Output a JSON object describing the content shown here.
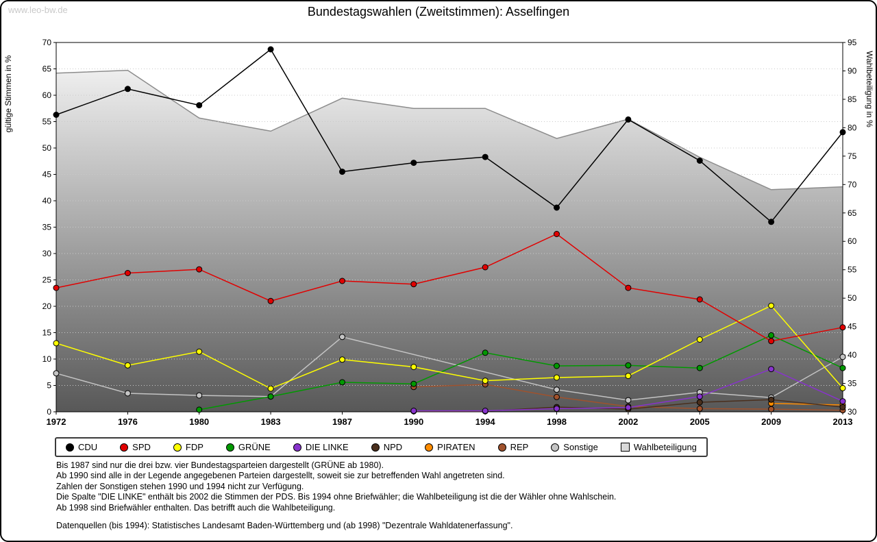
{
  "watermark": "www.leo-bw.de",
  "title": "Bundestagswahlen (Zweitstimmen): Asselfingen",
  "chart_data": {
    "type": "line",
    "x": [
      "1972",
      "1976",
      "1980",
      "1983",
      "1987",
      "1990",
      "1994",
      "1998",
      "2002",
      "2005",
      "2009",
      "2013"
    ],
    "left_axis": {
      "label": "gültige Stimmen in %",
      "min": 0,
      "max": 70,
      "step": 5
    },
    "right_axis": {
      "label": "Wahlbeteiligung in %",
      "min": 30,
      "max": 95,
      "step": 5
    },
    "grid": true,
    "legend_position": "bottom",
    "area_gradient": [
      "#fbfbfb",
      "#585858"
    ],
    "series": [
      {
        "name": "Wahlbeteiligung",
        "axis": "right",
        "type": "area",
        "color": "#8c8c8c",
        "legend_swatch": "#d9d9d9",
        "values": [
          89.6,
          90.1,
          81.7,
          79.4,
          85.2,
          83.4,
          83.4,
          78.1,
          81.5,
          74.8,
          69.1,
          69.6
        ]
      },
      {
        "name": "Sonstige",
        "axis": "left",
        "color": "#c4c4c4",
        "values": [
          7.3,
          3.5,
          3.1,
          2.9,
          14.2,
          null,
          null,
          4.2,
          2.2,
          3.7,
          2.7,
          10.4
        ]
      },
      {
        "name": "REP",
        "axis": "left",
        "color": "#a0522d",
        "values": [
          null,
          null,
          null,
          null,
          null,
          4.7,
          5.2,
          2.8,
          1.0,
          0.6,
          0.5,
          0.3
        ]
      },
      {
        "name": "PIRATEN",
        "axis": "left",
        "color": "#ff8c00",
        "values": [
          null,
          null,
          null,
          null,
          null,
          null,
          null,
          null,
          null,
          null,
          1.6,
          1.3
        ]
      },
      {
        "name": "NPD",
        "axis": "left",
        "color": "#4a2f1d",
        "values": [
          null,
          null,
          null,
          null,
          null,
          0.1,
          0.1,
          0.9,
          0.5,
          1.8,
          2.3,
          0.9
        ]
      },
      {
        "name": "DIE LINKE",
        "axis": "left",
        "color": "#8833cc",
        "values": [
          null,
          null,
          null,
          null,
          null,
          0.2,
          0.2,
          0.6,
          0.8,
          2.9,
          8.1,
          2.0
        ]
      },
      {
        "name": "GRÜNE",
        "axis": "left",
        "color": "#009900",
        "values": [
          null,
          null,
          0.4,
          2.9,
          5.6,
          5.3,
          11.2,
          8.7,
          8.8,
          8.3,
          14.5,
          8.3
        ]
      },
      {
        "name": "FDP",
        "axis": "left",
        "color": "#ffff00",
        "values": [
          13.0,
          8.8,
          11.4,
          4.4,
          9.9,
          8.5,
          5.9,
          6.5,
          6.8,
          13.7,
          20.1,
          4.5
        ]
      },
      {
        "name": "SPD",
        "axis": "left",
        "color": "#e10000",
        "values": [
          23.5,
          26.3,
          27.0,
          21.0,
          24.8,
          24.2,
          27.4,
          33.7,
          23.5,
          21.3,
          13.4,
          16.0
        ]
      },
      {
        "name": "CDU",
        "axis": "left",
        "color": "#000000",
        "values": [
          56.3,
          61.2,
          58.1,
          68.7,
          45.5,
          47.2,
          48.3,
          38.7,
          55.4,
          47.6,
          36.0,
          53.0
        ]
      }
    ],
    "legend_order": [
      "CDU",
      "SPD",
      "FDP",
      "GRÜNE",
      "DIE LINKE",
      "NPD",
      "PIRATEN",
      "REP",
      "Sonstige",
      "Wahlbeteiligung"
    ]
  },
  "footnotes": {
    "lines": [
      "Bis 1987 sind nur die drei bzw. vier Bundestagsparteien dargestellt (GRÜNE ab 1980).",
      "Ab 1990 sind alle in der Legende angegebenen Parteien dargestellt, soweit sie zur betreffenden Wahl angetreten sind.",
      "Zahlen der Sonstigen stehen 1990 und 1994 nicht zur Verfügung.",
      "Die Spalte \"DIE LINKE\" enthält bis 2002 die Stimmen der PDS. Bis 1994 ohne Briefwähler; die Wahlbeteiligung ist die der Wähler ohne Wahlschein.",
      "Ab 1998 sind Briefwähler enthalten. Das betrifft auch die Wahlbeteiligung."
    ],
    "source": "Datenquellen (bis 1994): Statistisches Landesamt Baden-Württemberg und (ab 1998) \"Dezentrale Wahldatenerfassung\"."
  }
}
